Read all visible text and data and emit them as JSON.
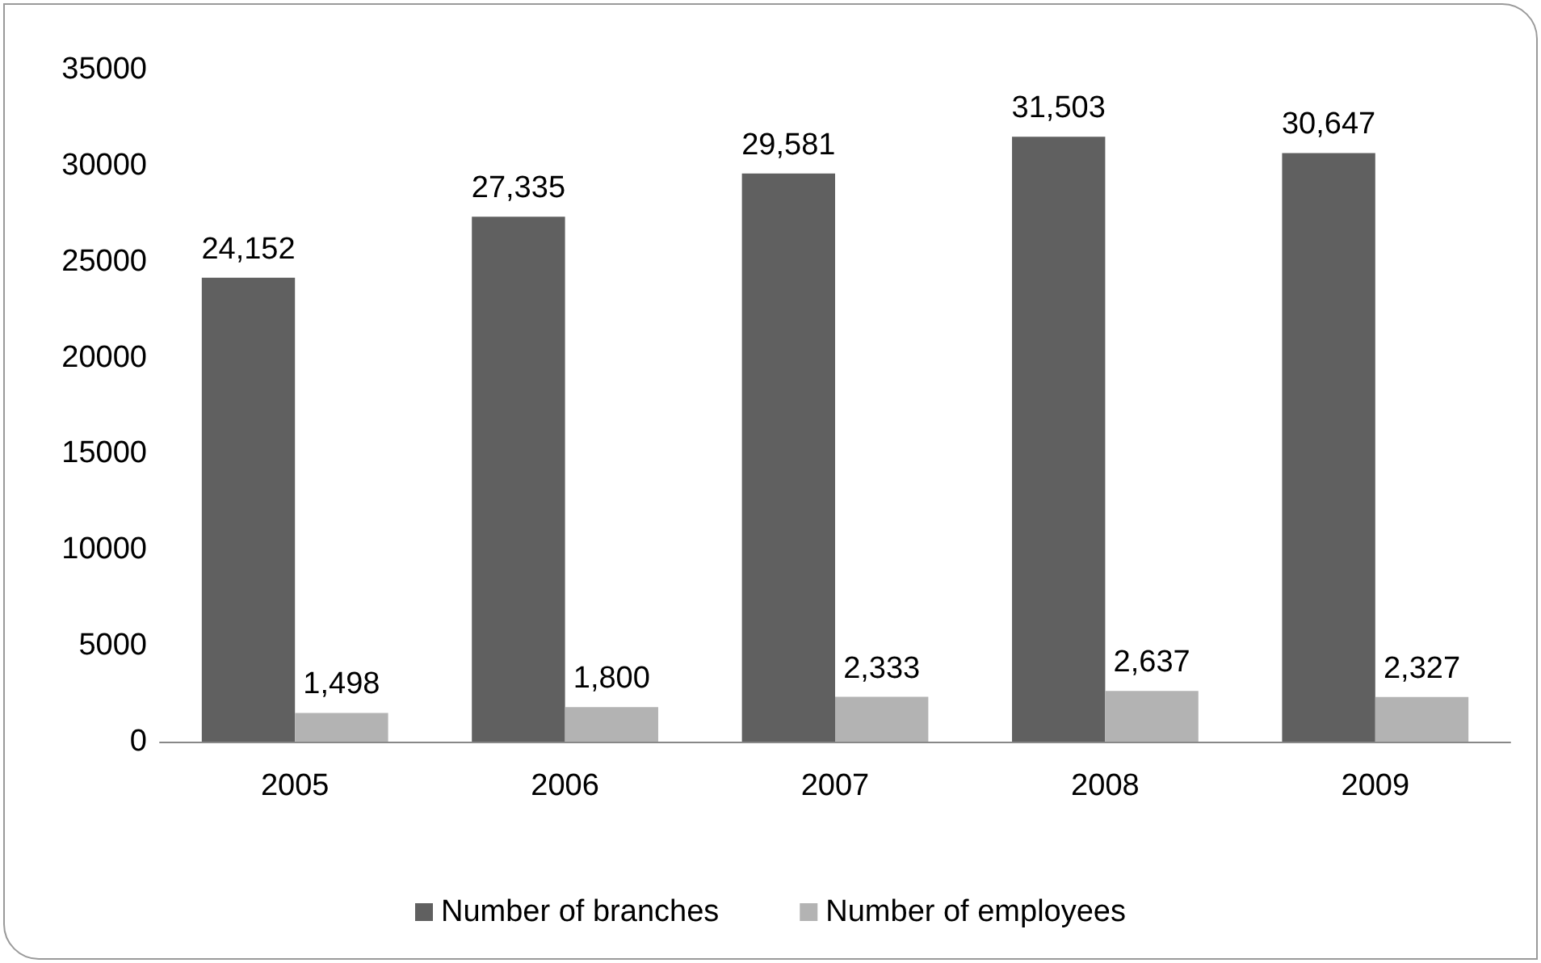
{
  "chart_data": {
    "type": "bar",
    "categories": [
      "2005",
      "2006",
      "2007",
      "2008",
      "2009"
    ],
    "series": [
      {
        "name": "Number of branches",
        "color": "#606060",
        "values": [
          24152,
          27335,
          29581,
          31503,
          30647
        ],
        "value_labels": [
          "24,152",
          "27,335",
          "29,581",
          "31,503",
          "30,647"
        ]
      },
      {
        "name": "Number of employees",
        "color": "#b3b3b3",
        "values": [
          1498,
          1800,
          2333,
          2637,
          2327
        ],
        "value_labels": [
          "1,498",
          "1,800",
          "2,333",
          "2,637",
          "2,327"
        ]
      }
    ],
    "ylim": [
      0,
      35000
    ],
    "yticks": [
      0,
      5000,
      10000,
      15000,
      20000,
      25000,
      30000,
      35000
    ],
    "grid": false,
    "legend": "bottom"
  }
}
